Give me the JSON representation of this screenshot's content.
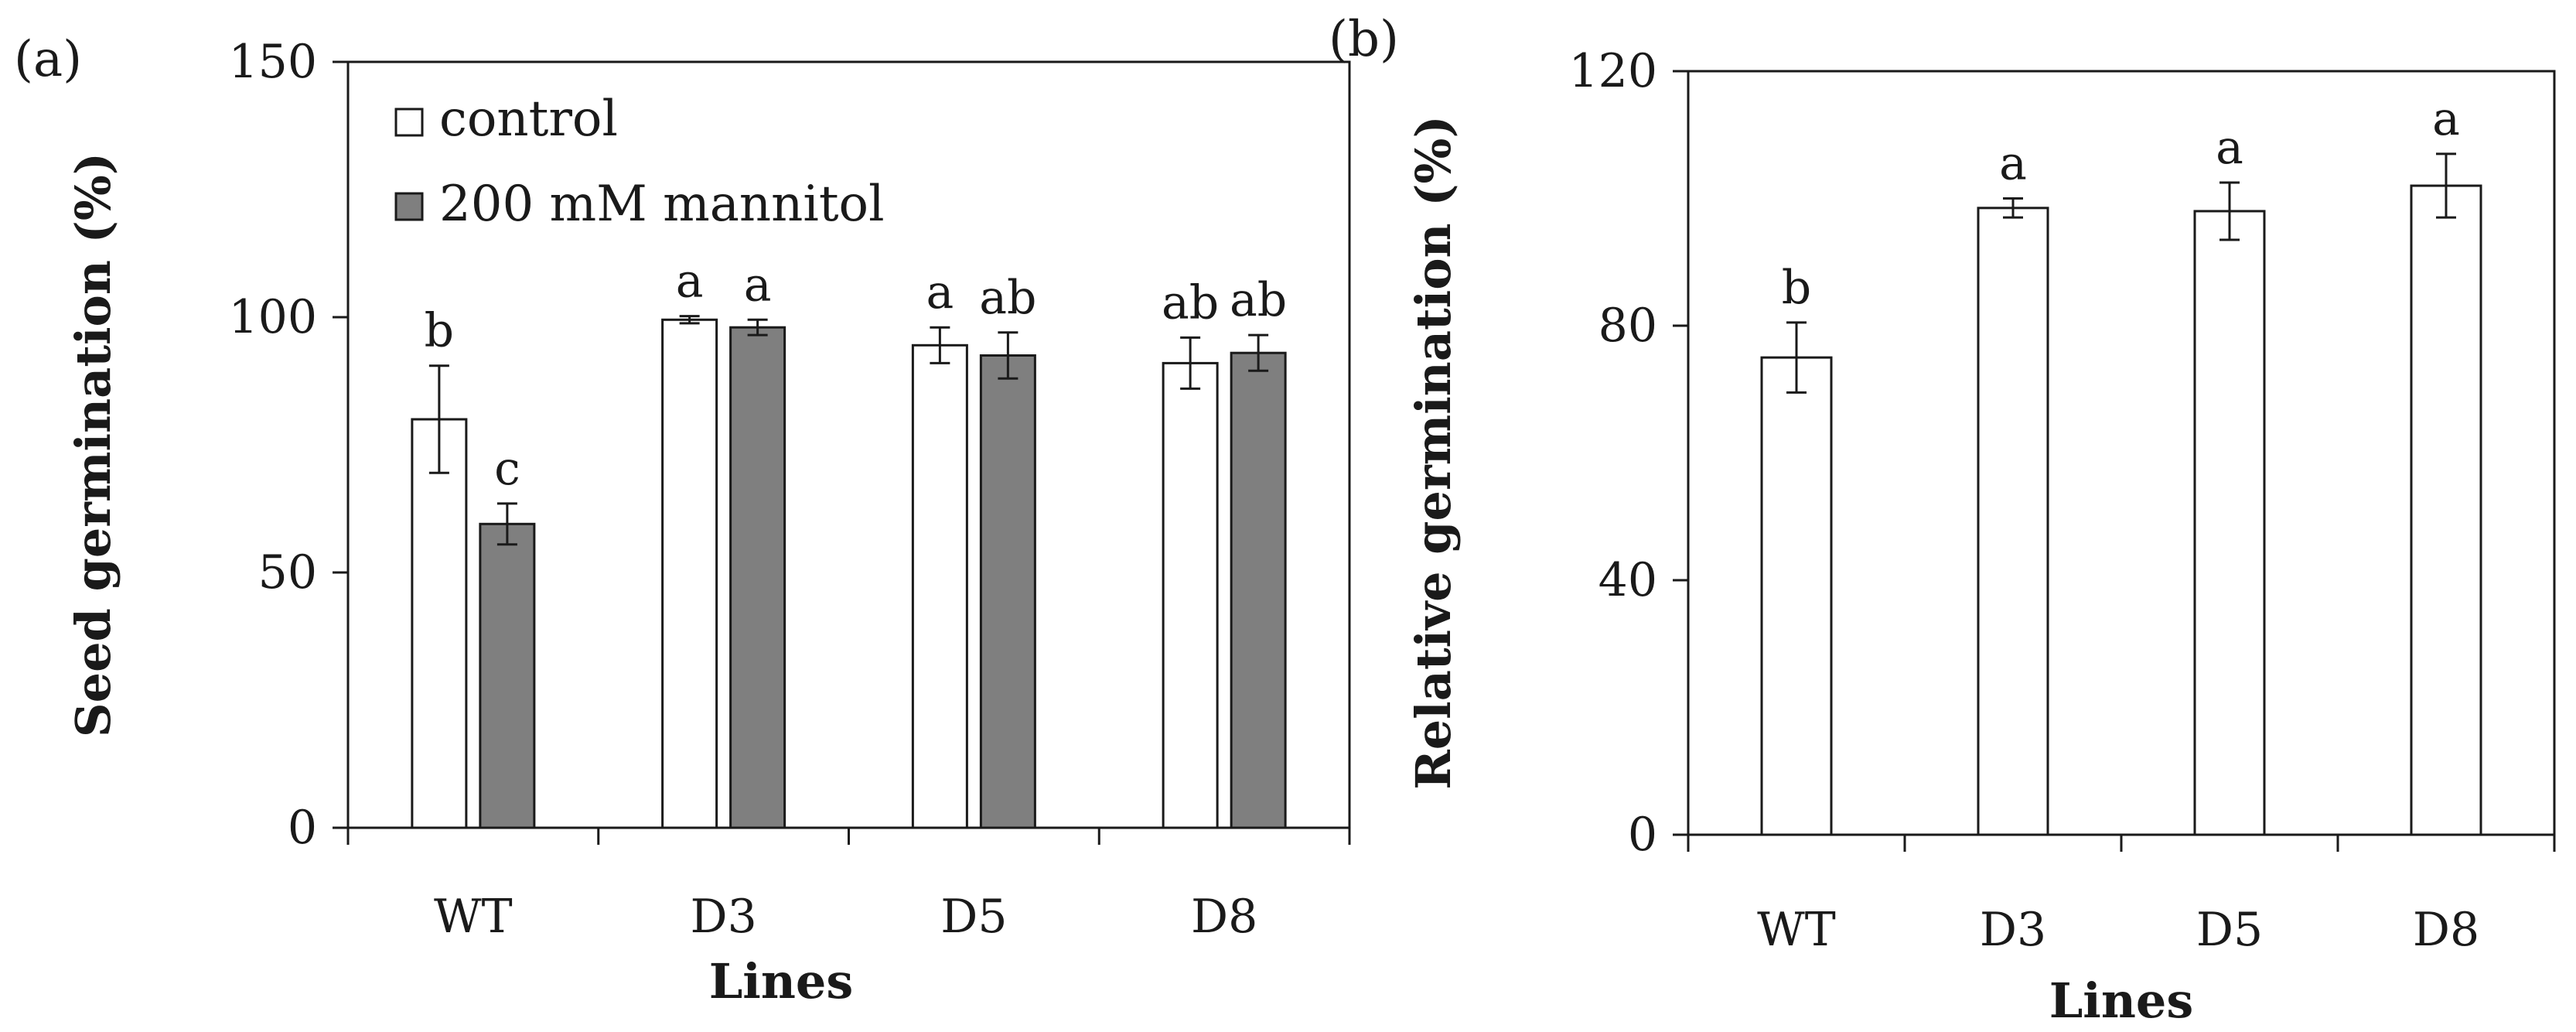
{
  "chart_data": [
    {
      "panel_label": "(a)",
      "type": "bar",
      "xlabel": "Lines",
      "ylabel": "Seed germination (%)",
      "ylim": [
        0,
        150
      ],
      "yticks": [
        0,
        50,
        100,
        150
      ],
      "categories": [
        "WT",
        "D3",
        "D5",
        "D8"
      ],
      "series": [
        {
          "name": "control",
          "color": "#ffffff",
          "values": [
            80,
            99.5,
            94.5,
            91
          ],
          "errors": [
            10.5,
            0.7,
            3.5,
            5
          ],
          "letters": [
            "b",
            "a",
            "a",
            "ab"
          ]
        },
        {
          "name": "200 mM mannitol",
          "color": "#7f7f7f",
          "values": [
            59.5,
            98,
            92.5,
            93
          ],
          "errors": [
            4,
            1.5,
            4.5,
            3.5
          ],
          "letters": [
            "c",
            "a",
            "ab",
            "ab"
          ]
        }
      ],
      "legend_position": "top-left"
    },
    {
      "panel_label": "(b)",
      "type": "bar",
      "xlabel": "Lines",
      "ylabel": "Relative germination (%)",
      "ylim": [
        0,
        120
      ],
      "yticks": [
        0,
        40,
        80,
        120
      ],
      "categories": [
        "WT",
        "D3",
        "D5",
        "D8"
      ],
      "series": [
        {
          "name": "relative germination",
          "color": "#ffffff",
          "values": [
            75,
            98.5,
            98,
            102
          ],
          "errors": [
            5.5,
            1.5,
            4.5,
            5
          ],
          "letters": [
            "b",
            "a",
            "a",
            "a"
          ]
        }
      ]
    }
  ]
}
